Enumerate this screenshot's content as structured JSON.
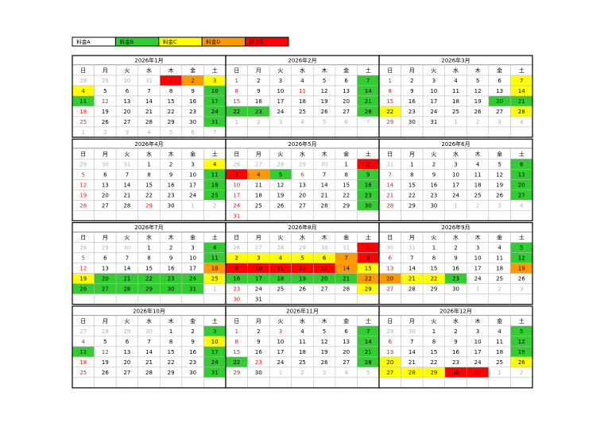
{
  "legend": [
    {
      "label": "料金A",
      "color": "#ffffff"
    },
    {
      "label": "料金B",
      "color": "#33cc33"
    },
    {
      "label": "料金C",
      "color": "#ffff00"
    },
    {
      "label": "料金D",
      "color": "#ff9900"
    },
    {
      "label": "料金E",
      "color": "#ff0000"
    }
  ],
  "weekdays": [
    "日",
    "月",
    "火",
    "水",
    "木",
    "金",
    "土"
  ],
  "months": [
    {
      "title": "2026年1月",
      "weeks": [
        [
          28,
          29,
          30,
          31,
          {
            "day": 1,
            "fill": "#ff0000"
          },
          {
            "day": 2,
            "fill": "#ff9900"
          },
          {
            "day": 3,
            "fill": "#ffff00"
          }
        ],
        [
          {
            "day": 4,
            "fill": "#ffff00"
          },
          5,
          6,
          7,
          8,
          9,
          {
            "day": 10,
            "fill": "#33cc33"
          }
        ],
        [
          {
            "day": 11,
            "fill": "#33cc33"
          },
          {
            "day": 12,
            "holiday": true
          },
          13,
          14,
          15,
          16,
          {
            "day": 17,
            "fill": "#33cc33"
          }
        ],
        [
          18,
          19,
          20,
          21,
          22,
          23,
          {
            "day": 24,
            "fill": "#33cc33"
          }
        ],
        [
          25,
          26,
          27,
          28,
          29,
          30,
          {
            "day": 31,
            "fill": "#33cc33"
          }
        ],
        [
          1,
          2,
          3,
          4,
          5,
          6,
          7
        ]
      ]
    },
    {
      "title": "2026年2月",
      "weeks": [
        [
          1,
          2,
          3,
          4,
          5,
          6,
          {
            "day": 7,
            "fill": "#33cc33"
          }
        ],
        [
          8,
          9,
          10,
          {
            "day": 11,
            "holiday": true
          },
          12,
          13,
          {
            "day": 14,
            "fill": "#33cc33"
          }
        ],
        [
          15,
          16,
          17,
          18,
          19,
          20,
          {
            "day": 21,
            "fill": "#33cc33"
          }
        ],
        [
          {
            "day": 22,
            "fill": "#33cc33"
          },
          {
            "day": 23,
            "fill": "#33cc33"
          },
          24,
          25,
          26,
          27,
          {
            "day": 28,
            "fill": "#33cc33"
          }
        ],
        [
          1,
          2,
          3,
          4,
          5,
          6,
          7
        ]
      ]
    },
    {
      "title": "2026年3月",
      "weeks": [
        [
          1,
          2,
          3,
          4,
          5,
          6,
          {
            "day": 7,
            "fill": "#ffff00"
          }
        ],
        [
          8,
          9,
          10,
          11,
          12,
          13,
          {
            "day": 14,
            "fill": "#ffff00"
          }
        ],
        [
          15,
          16,
          17,
          18,
          19,
          {
            "day": 20,
            "fill": "#33cc33"
          },
          {
            "day": 21,
            "fill": "#33cc33"
          }
        ],
        [
          {
            "day": 22,
            "fill": "#ffff00"
          },
          23,
          24,
          25,
          26,
          27,
          {
            "day": 28,
            "fill": "#ffff00"
          }
        ],
        [
          29,
          30,
          31,
          1,
          2,
          3,
          4
        ]
      ]
    },
    {
      "title": "2026年4月",
      "weeks": [
        [
          29,
          30,
          31,
          1,
          2,
          3,
          {
            "day": 4,
            "fill": "#ffff00"
          }
        ],
        [
          5,
          6,
          7,
          8,
          9,
          10,
          {
            "day": 11,
            "fill": "#33cc33"
          }
        ],
        [
          12,
          13,
          14,
          15,
          16,
          17,
          {
            "day": 18,
            "fill": "#33cc33"
          }
        ],
        [
          19,
          20,
          21,
          22,
          23,
          24,
          {
            "day": 25,
            "fill": "#33cc33"
          }
        ],
        [
          26,
          27,
          28,
          {
            "day": 29,
            "holiday": true
          },
          30,
          1,
          2
        ]
      ]
    },
    {
      "title": "2026年5月",
      "weeks": [
        [
          26,
          27,
          28,
          29,
          30,
          1,
          {
            "day": 2,
            "fill": "#ff0000"
          }
        ],
        [
          {
            "day": 3,
            "fill": "#ff0000"
          },
          {
            "day": 4,
            "fill": "#ff9900"
          },
          {
            "day": 5,
            "fill": "#33cc33"
          },
          {
            "day": 6,
            "holiday": true
          },
          7,
          8,
          {
            "day": 9,
            "fill": "#33cc33"
          }
        ],
        [
          10,
          11,
          12,
          13,
          14,
          15,
          {
            "day": 16,
            "fill": "#33cc33"
          }
        ],
        [
          17,
          18,
          19,
          20,
          21,
          22,
          {
            "day": 23,
            "fill": "#33cc33"
          }
        ],
        [
          24,
          25,
          26,
          27,
          28,
          29,
          {
            "day": 30,
            "fill": "#33cc33"
          }
        ],
        [
          31
        ]
      ]
    },
    {
      "title": "2026年6月",
      "weeks": [
        [
          31,
          1,
          2,
          3,
          4,
          5,
          {
            "day": 6,
            "fill": "#33cc33"
          }
        ],
        [
          7,
          8,
          9,
          10,
          11,
          12,
          {
            "day": 13,
            "fill": "#33cc33"
          }
        ],
        [
          14,
          15,
          16,
          17,
          18,
          19,
          {
            "day": 20,
            "fill": "#33cc33"
          }
        ],
        [
          21,
          22,
          23,
          24,
          25,
          26,
          {
            "day": 27,
            "fill": "#33cc33"
          }
        ],
        [
          28,
          29,
          30,
          1,
          2,
          3,
          4
        ]
      ]
    },
    {
      "title": "2026年7月",
      "weeks": [
        [
          28,
          29,
          30,
          1,
          2,
          3,
          {
            "day": 4,
            "fill": "#33cc33"
          }
        ],
        [
          5,
          6,
          7,
          8,
          9,
          10,
          {
            "day": 11,
            "fill": "#33cc33"
          }
        ],
        [
          12,
          13,
          14,
          15,
          16,
          17,
          {
            "day": 18,
            "fill": "#ff9900"
          }
        ],
        [
          {
            "day": 19,
            "fill": "#ffff00"
          },
          {
            "day": 20,
            "fill": "#33cc33"
          },
          {
            "day": 21,
            "fill": "#33cc33"
          },
          {
            "day": 22,
            "fill": "#33cc33"
          },
          {
            "day": 23,
            "fill": "#33cc33"
          },
          {
            "day": 24,
            "fill": "#33cc33"
          },
          {
            "day": 25,
            "fill": "#ffff00"
          }
        ],
        [
          {
            "day": 26,
            "fill": "#33cc33"
          },
          {
            "day": 27,
            "fill": "#33cc33"
          },
          {
            "day": 28,
            "fill": "#33cc33"
          },
          {
            "day": 29,
            "fill": "#33cc33"
          },
          {
            "day": 30,
            "fill": "#33cc33"
          },
          {
            "day": 31,
            "fill": "#33cc33"
          },
          1
        ]
      ]
    },
    {
      "title": "2026年8月",
      "weeks": [
        [
          26,
          27,
          28,
          29,
          30,
          31,
          {
            "day": 1,
            "fill": "#ff0000"
          }
        ],
        [
          {
            "day": 2,
            "fill": "#ffff00"
          },
          {
            "day": 3,
            "fill": "#ffff00"
          },
          {
            "day": 4,
            "fill": "#ffff00"
          },
          {
            "day": 5,
            "fill": "#ffff00"
          },
          {
            "day": 6,
            "fill": "#ffff00"
          },
          {
            "day": 7,
            "fill": "#ff9900"
          },
          {
            "day": 8,
            "fill": "#ff0000"
          }
        ],
        [
          {
            "day": 9,
            "fill": "#ff0000"
          },
          {
            "day": 10,
            "fill": "#ff0000"
          },
          {
            "day": 11,
            "fill": "#ff0000"
          },
          {
            "day": 12,
            "fill": "#ff0000"
          },
          {
            "day": 13,
            "fill": "#ff0000"
          },
          {
            "day": 14,
            "fill": "#ff9900"
          },
          {
            "day": 15,
            "fill": "#ffff00"
          }
        ],
        [
          {
            "day": 16,
            "fill": "#33cc33"
          },
          {
            "day": 17,
            "fill": "#33cc33"
          },
          {
            "day": 18,
            "fill": "#33cc33"
          },
          {
            "day": 19,
            "fill": "#33cc33"
          },
          {
            "day": 20,
            "fill": "#33cc33"
          },
          {
            "day": 21,
            "fill": "#33cc33"
          },
          {
            "day": 22,
            "fill": "#ff9900"
          }
        ],
        [
          23,
          24,
          25,
          26,
          27,
          28,
          {
            "day": 29,
            "fill": "#ffff00"
          }
        ],
        [
          30,
          31
        ]
      ]
    },
    {
      "title": "2026年9月",
      "weeks": [
        [
          30,
          31,
          1,
          2,
          3,
          4,
          {
            "day": 5,
            "fill": "#33cc33"
          }
        ],
        [
          6,
          7,
          8,
          9,
          10,
          11,
          {
            "day": 12,
            "fill": "#33cc33"
          }
        ],
        [
          13,
          14,
          15,
          16,
          17,
          18,
          {
            "day": 19,
            "fill": "#ff9900"
          }
        ],
        [
          {
            "day": 20,
            "fill": "#ff9900"
          },
          {
            "day": 21,
            "fill": "#ffff00"
          },
          {
            "day": 22,
            "fill": "#ffff00"
          },
          {
            "day": 23,
            "fill": "#33cc33"
          },
          24,
          25,
          26
        ],
        [
          27,
          28,
          29,
          30,
          1,
          2,
          3
        ]
      ]
    },
    {
      "title": "2026年10月",
      "weeks": [
        [
          27,
          28,
          29,
          30,
          1,
          2,
          {
            "day": 3,
            "fill": "#33cc33"
          }
        ],
        [
          4,
          5,
          6,
          7,
          8,
          9,
          {
            "day": 10,
            "fill": "#ffff00"
          }
        ],
        [
          {
            "day": 11,
            "fill": "#33cc33"
          },
          {
            "day": 12,
            "holiday": true
          },
          13,
          14,
          15,
          16,
          {
            "day": 17,
            "fill": "#33cc33"
          }
        ],
        [
          18,
          19,
          20,
          21,
          22,
          23,
          {
            "day": 24,
            "fill": "#33cc33"
          }
        ],
        [
          25,
          26,
          27,
          28,
          29,
          30,
          {
            "day": 31,
            "fill": "#33cc33"
          }
        ]
      ]
    },
    {
      "title": "2026年11月",
      "weeks": [
        [
          1,
          2,
          {
            "day": 3,
            "holiday": true
          },
          4,
          5,
          6,
          {
            "day": 7,
            "fill": "#33cc33"
          }
        ],
        [
          8,
          9,
          10,
          11,
          12,
          13,
          {
            "day": 14,
            "fill": "#33cc33"
          }
        ],
        [
          15,
          16,
          17,
          18,
          19,
          20,
          {
            "day": 21,
            "fill": "#33cc33"
          }
        ],
        [
          {
            "day": 22,
            "fill": "#33cc33"
          },
          {
            "day": 23,
            "holiday": true
          },
          24,
          25,
          26,
          27,
          {
            "day": 28,
            "fill": "#33cc33"
          }
        ],
        [
          29,
          30,
          1,
          2,
          3,
          4,
          5
        ]
      ]
    },
    {
      "title": "2026年12月",
      "weeks": [
        [
          29,
          30,
          1,
          2,
          3,
          4,
          {
            "day": 5,
            "fill": "#33cc33"
          }
        ],
        [
          6,
          7,
          8,
          9,
          10,
          11,
          {
            "day": 12,
            "fill": "#33cc33"
          }
        ],
        [
          13,
          14,
          15,
          16,
          17,
          18,
          {
            "day": 19,
            "fill": "#33cc33"
          }
        ],
        [
          {
            "day": 20,
            "fill": "#ffff00"
          },
          21,
          22,
          23,
          24,
          25,
          {
            "day": 26,
            "fill": "#ffff00"
          }
        ],
        [
          {
            "day": 27,
            "fill": "#ffff00"
          },
          {
            "day": 28,
            "fill": "#ffff00"
          },
          {
            "day": 29,
            "fill": "#ffff00"
          },
          {
            "day": 30,
            "fill": "#ff0000"
          },
          {
            "day": 31,
            "fill": "#ff0000"
          },
          1,
          2
        ]
      ]
    }
  ]
}
